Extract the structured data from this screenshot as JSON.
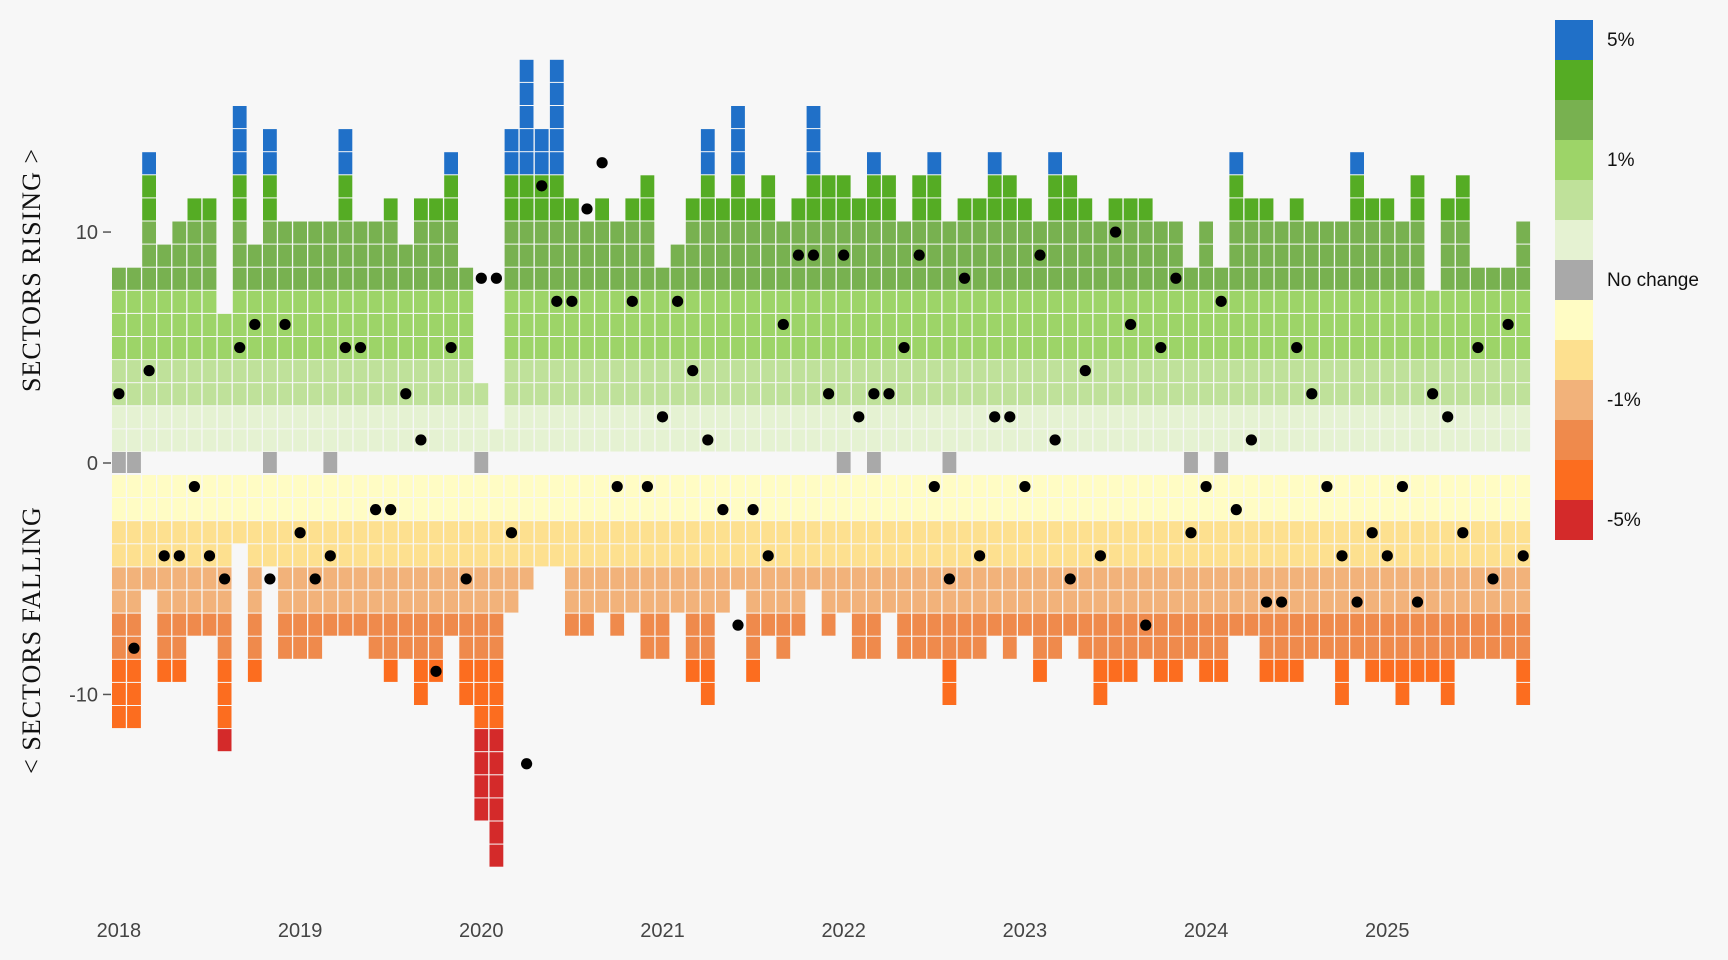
{
  "chart_data": {
    "type": "heatmap",
    "description_free": true,
    "x_start_year": 2018,
    "x_years": [
      "2018",
      "2019",
      "2020",
      "2021",
      "2022",
      "2023",
      "2024",
      "2025"
    ],
    "y_axis": {
      "ticks": [
        "10",
        "0",
        "-10"
      ],
      "tick_values": [
        10,
        0,
        -10
      ],
      "label_top": "SECTORS RISING >",
      "label_bottom": "< SECTORS FALLING"
    },
    "legend": {
      "position": "right",
      "items": [
        {
          "label": "5%",
          "color": "#2070c8"
        },
        {
          "label": "",
          "color": "#55ac24"
        },
        {
          "label": "",
          "color": "#78b150"
        },
        {
          "label": "1%",
          "color": "#9dd468"
        },
        {
          "label": "",
          "color": "#bfe19a"
        },
        {
          "label": "",
          "color": "#e5f2d2"
        },
        {
          "label": "No change",
          "color": "#a9a9a9"
        },
        {
          "label": "",
          "color": "#fffcc4"
        },
        {
          "label": "",
          "color": "#fde08f"
        },
        {
          "label": "-1%",
          "color": "#f2b27a"
        },
        {
          "label": "",
          "color": "#ef8a4c"
        },
        {
          "label": "",
          "color": "#fc6d1f"
        },
        {
          "label": "-5%",
          "color": "#d42a2a"
        }
      ]
    },
    "series": [
      {
        "name": "rising_count",
        "values": [
          8,
          8,
          13,
          9,
          10,
          11,
          11,
          6,
          15,
          9,
          14,
          10,
          10,
          10,
          10,
          14,
          10,
          10,
          11,
          9,
          11,
          11,
          13,
          8,
          3,
          1,
          14,
          17,
          14,
          17,
          11,
          10,
          11,
          10,
          11,
          12,
          8,
          9,
          11,
          14,
          11,
          15,
          11,
          12,
          10,
          11,
          15,
          12,
          12,
          11,
          13,
          12,
          10,
          12,
          13,
          10,
          11,
          11,
          13,
          12,
          11,
          10,
          13,
          12,
          11,
          10,
          11,
          11,
          11,
          10,
          10,
          8,
          10,
          8,
          13,
          11,
          11,
          10,
          11,
          10,
          10,
          10,
          13,
          11,
          11,
          10,
          12,
          7,
          11,
          12,
          8,
          8,
          8,
          10
        ]
      },
      {
        "name": "unchanged_count",
        "values": [
          1,
          1,
          0,
          0,
          0,
          0,
          0,
          0,
          0,
          0,
          1,
          0,
          0,
          0,
          1,
          0,
          0,
          0,
          0,
          0,
          0,
          0,
          0,
          0,
          1,
          0,
          0,
          0,
          0,
          0,
          0,
          0,
          0,
          0,
          0,
          0,
          0,
          0,
          0,
          0,
          0,
          0,
          0,
          0,
          0,
          0,
          0,
          0,
          1,
          0,
          1,
          0,
          0,
          0,
          0,
          1,
          0,
          0,
          0,
          0,
          0,
          0,
          0,
          0,
          0,
          0,
          0,
          0,
          0,
          0,
          0,
          1,
          0,
          1,
          0,
          0,
          0,
          0,
          0,
          0,
          0,
          0,
          0,
          0,
          0,
          0,
          0,
          0,
          0,
          0,
          0,
          0,
          0,
          0
        ]
      },
      {
        "name": "falling_count",
        "values": [
          11,
          11,
          5,
          9,
          9,
          7,
          7,
          12,
          3,
          9,
          4,
          8,
          8,
          8,
          7,
          7,
          7,
          8,
          9,
          8,
          10,
          9,
          7,
          10,
          15,
          17,
          6,
          5,
          4,
          4,
          7,
          7,
          6,
          7,
          6,
          8,
          8,
          6,
          9,
          10,
          6,
          5,
          9,
          7,
          8,
          7,
          5,
          7,
          6,
          8,
          8,
          6,
          8,
          8,
          8,
          10,
          8,
          8,
          7,
          8,
          7,
          9,
          8,
          7,
          8,
          10,
          9,
          9,
          8,
          9,
          9,
          8,
          9,
          9,
          7,
          7,
          9,
          9,
          9,
          8,
          8,
          10,
          8,
          9,
          9,
          10,
          9,
          9,
          10,
          8,
          8,
          8,
          8,
          10
        ]
      },
      {
        "name": "median_position",
        "values": [
          3,
          -8,
          4,
          -4,
          -4,
          -1,
          -4,
          -5,
          5,
          6,
          -5,
          6,
          -3,
          -5,
          -4,
          5,
          5,
          -2,
          -2,
          3,
          1,
          -9,
          5,
          -5,
          8,
          8,
          -3,
          -13,
          12,
          7,
          7,
          11,
          13,
          -1,
          7,
          -1,
          2,
          7,
          4,
          1,
          -2,
          -7,
          -2,
          -4,
          6,
          9,
          9,
          3,
          9,
          2,
          3,
          3,
          5,
          9,
          -1,
          -5,
          8,
          -4,
          2,
          2,
          -1,
          9,
          1,
          -5,
          4,
          -4,
          10,
          6,
          -7,
          5,
          8,
          -3,
          -1,
          7,
          -2,
          1,
          -6,
          -6,
          5,
          3,
          -1,
          -4,
          -6,
          -3,
          -4,
          -1,
          -6,
          3,
          2,
          -3,
          5,
          -5,
          6,
          -4
        ]
      }
    ]
  }
}
